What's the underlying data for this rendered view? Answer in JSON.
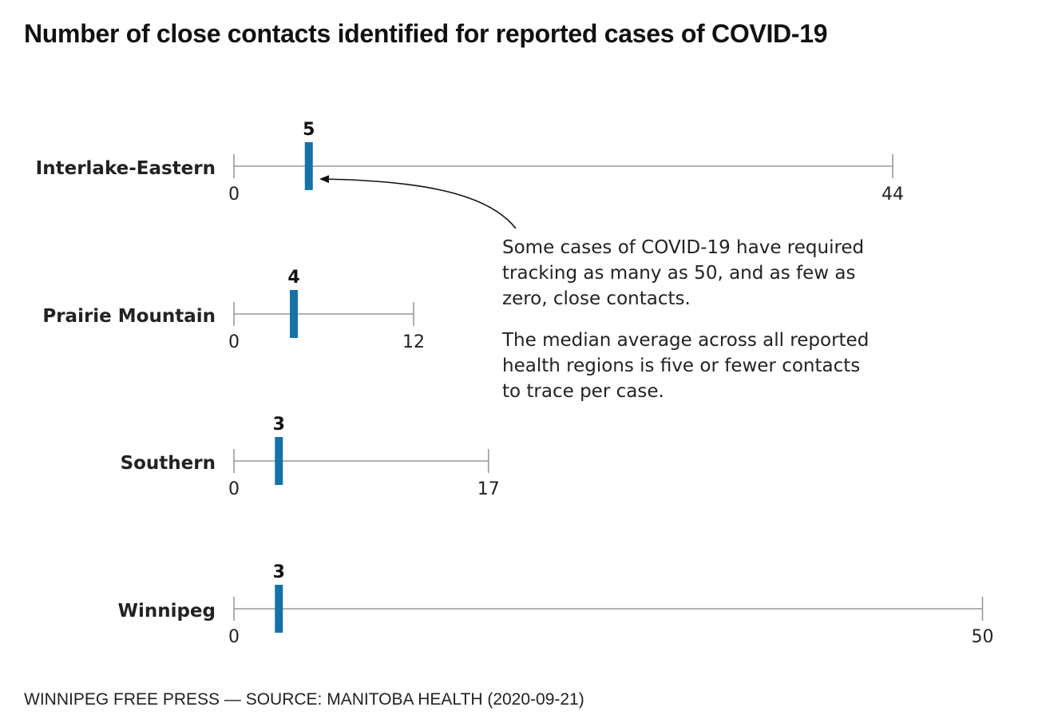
{
  "title": "Number of close contacts identified for reported cases of COVID-19",
  "annotation": {
    "paragraph1": "Some cases of COVID-19 have required tracking as many as 50, and as few as zero, close contacts.",
    "paragraph2": "The median average across all reported health regions is five or fewer contacts to trace per case."
  },
  "source": "WINNIPEG FREE PRESS — SOURCE: MANITOBA HEALTH (2020-09-21)",
  "colors": {
    "marker": "#1572a6",
    "axis": "#9a9a9a",
    "text": "#222222"
  },
  "chart_data": {
    "type": "range-dot",
    "scale_max": 50,
    "rows": [
      {
        "region": "Interlake-Eastern",
        "min": 0,
        "max": 44,
        "median": 5,
        "min_label": "0",
        "max_label": "44",
        "median_label": "5"
      },
      {
        "region": "Prairie Mountain",
        "min": 0,
        "max": 12,
        "median": 4,
        "min_label": "0",
        "max_label": "12",
        "median_label": "4"
      },
      {
        "region": "Southern",
        "min": 0,
        "max": 17,
        "median": 3,
        "min_label": "0",
        "max_label": "17",
        "median_label": "3"
      },
      {
        "region": "Winnipeg",
        "min": 0,
        "max": 50,
        "median": 3,
        "min_label": "0",
        "max_label": "50",
        "median_label": "3"
      }
    ]
  }
}
